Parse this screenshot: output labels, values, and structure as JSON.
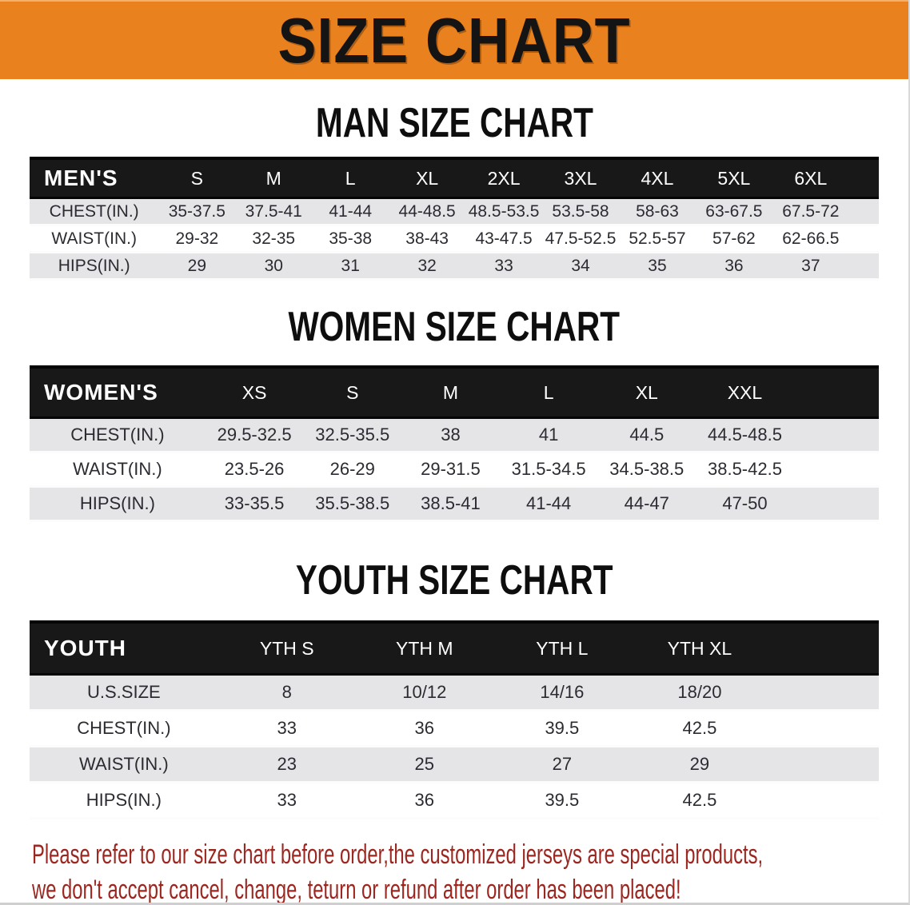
{
  "colors": {
    "banner_bg": "#E8811E",
    "header_bg": "#181818",
    "stripe": "#E5E5E7",
    "footer_text": "#9C2720",
    "body_text": "#2B2B31"
  },
  "banner": {
    "title": "SIZE CHART"
  },
  "sections": [
    {
      "id": "mens",
      "title": "MAN SIZE CHART",
      "header_label": "MEN'S",
      "sizes": [
        "S",
        "M",
        "L",
        "XL",
        "2XL",
        "3XL",
        "4XL",
        "5XL",
        "6XL"
      ],
      "rows": [
        {
          "label": "CHEST(IN.)",
          "values": [
            "35-37.5",
            "37.5-41",
            "41-44",
            "44-48.5",
            "48.5-53.5",
            "53.5-58",
            "58-63",
            "63-67.5",
            "67.5-72"
          ]
        },
        {
          "label": "WAIST(IN.)",
          "values": [
            "29-32",
            "32-35",
            "35-38",
            "38-43",
            "43-47.5",
            "47.5-52.5",
            "52.5-57",
            "57-62",
            "62-66.5"
          ]
        },
        {
          "label": "HIPS(IN.)",
          "values": [
            "29",
            "30",
            "31",
            "32",
            "33",
            "34",
            "35",
            "36",
            "37"
          ]
        }
      ]
    },
    {
      "id": "womens",
      "title": "WOMEN SIZE CHART",
      "header_label": "WOMEN'S",
      "sizes": [
        "XS",
        "S",
        "M",
        "L",
        "XL",
        "XXL"
      ],
      "rows": [
        {
          "label": "CHEST(IN.)",
          "values": [
            "29.5-32.5",
            "32.5-35.5",
            "38",
            "41",
            "44.5",
            "44.5-48.5"
          ]
        },
        {
          "label": "WAIST(IN.)",
          "values": [
            "23.5-26",
            "26-29",
            "29-31.5",
            "31.5-34.5",
            "34.5-38.5",
            "38.5-42.5"
          ]
        },
        {
          "label": "HIPS(IN.)",
          "values": [
            "33-35.5",
            "35.5-38.5",
            "38.5-41",
            "41-44",
            "44-47",
            "47-50"
          ]
        }
      ]
    },
    {
      "id": "youth",
      "title": "YOUTH SIZE CHART",
      "header_label": "YOUTH",
      "sizes": [
        "YTH S",
        "YTH M",
        "YTH L",
        "YTH XL"
      ],
      "rows": [
        {
          "label": "U.S.SIZE",
          "values": [
            "8",
            "10/12",
            "14/16",
            "18/20"
          ]
        },
        {
          "label": "CHEST(IN.)",
          "values": [
            "33",
            "36",
            "39.5",
            "42.5"
          ]
        },
        {
          "label": "WAIST(IN.)",
          "values": [
            "23",
            "25",
            "27",
            "29"
          ]
        },
        {
          "label": "HIPS(IN.)",
          "values": [
            "33",
            "36",
            "39.5",
            "42.5"
          ]
        }
      ]
    }
  ],
  "footer": {
    "line1": "Please refer to our size chart before order,the customized jerseys are special products,",
    "line2": "we don't accept cancel, change, teturn or refund after order has been placed!"
  }
}
